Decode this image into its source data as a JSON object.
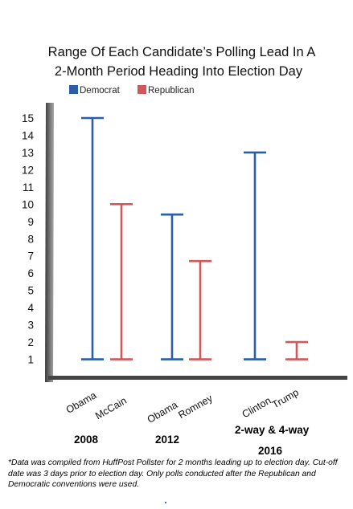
{
  "chart_data": {
    "type": "range-bar",
    "title_lines": [
      "Range Of Each Candidate’s Polling Lead In A",
      "2-Month Period Heading Into Election Day"
    ],
    "legend": [
      {
        "label": "Democrat",
        "color": "#2a5ea7"
      },
      {
        "label": "Republican",
        "color": "#d0585a"
      }
    ],
    "y_ticks": [
      1,
      2,
      3,
      4,
      5,
      6,
      7,
      8,
      9,
      10,
      11,
      12,
      13,
      14,
      15
    ],
    "ylim": [
      0,
      15.3
    ],
    "groups": [
      {
        "year": "2008",
        "candidates": [
          {
            "name": "Obama",
            "party": "Democrat",
            "low": 1,
            "high": 15
          },
          {
            "name": "McCain",
            "party": "Republican",
            "low": 1,
            "high": 10
          }
        ]
      },
      {
        "year": "2012",
        "candidates": [
          {
            "name": "Obama",
            "party": "Democrat",
            "low": 1,
            "high": 9.4
          },
          {
            "name": "Romney",
            "party": "Republican",
            "low": 1,
            "high": 6.7
          }
        ]
      },
      {
        "year": "2016",
        "subtitle": "2-way & 4-way",
        "candidates": [
          {
            "name": "Clinton",
            "party": "Democrat",
            "low": 1,
            "high": 13
          },
          {
            "name": "Trump",
            "party": "Republican",
            "low": 1,
            "high": 2
          }
        ]
      }
    ]
  },
  "footnote": "*Data was compiled from HuffPost Pollster for 2 months leading up to election day. Cut-off date was 3 days prior to election day. Only polls conducted after the Republican and Democratic conventions were used."
}
